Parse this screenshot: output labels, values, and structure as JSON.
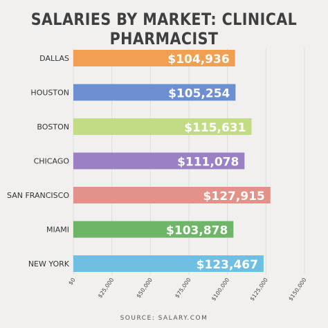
{
  "title": "SALARIES BY MARKET: CLINICAL PHARMACIST",
  "source": "SOURCE: SALARY.COM",
  "chart_data": {
    "type": "bar",
    "orientation": "horizontal",
    "categories": [
      "DALLAS",
      "HOUSTON",
      "BOSTON",
      "CHICAGO",
      "SAN FRANCISCO",
      "MIAMI",
      "NEW YORK"
    ],
    "values": [
      104936,
      105254,
      115631,
      111078,
      127915,
      103878,
      123467
    ],
    "value_labels": [
      "$104,936",
      "$105,254",
      "$115,631",
      "$111,078",
      "$127,915",
      "$103,878",
      "$123,467"
    ],
    "colors": [
      "#f0a050",
      "#6b8fd1",
      "#c2dc85",
      "#9a80c4",
      "#e3928a",
      "#6fb567",
      "#6fbfe3"
    ],
    "xticks": [
      "$0",
      "$25,000",
      "$50,000",
      "$75,000",
      "$100,000",
      "$125,000",
      "$150,000"
    ],
    "xlim": [
      0,
      150000
    ],
    "grid": true,
    "title": "SALARIES BY MARKET: CLINICAL PHARMACIST",
    "xlabel": "",
    "ylabel": ""
  }
}
